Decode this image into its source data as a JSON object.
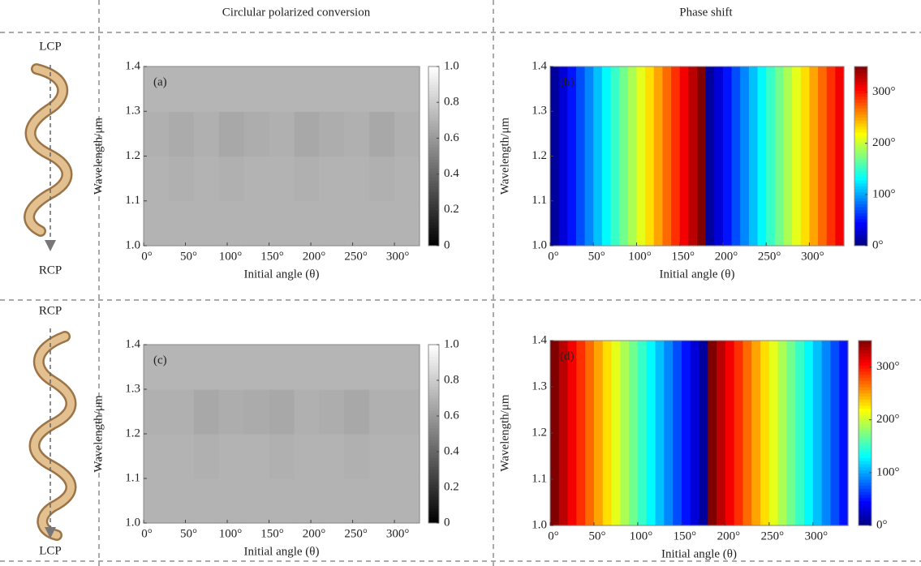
{
  "header": {
    "left": "Circlular polarized conversion",
    "right": "Phase shift"
  },
  "rows": [
    {
      "top": "LCP",
      "bottom": "RCP"
    },
    {
      "top": "RCP",
      "bottom": "LCP"
    }
  ],
  "chart_data": [
    {
      "type": "heatmap",
      "label": "(a)",
      "xlabel": "Initial angle (θ)",
      "ylabel": "Wavelength/μm",
      "colormap": "gray",
      "xbins": [
        0,
        30,
        60,
        90,
        120,
        150,
        180,
        210,
        240,
        270,
        300,
        330
      ],
      "ybins": [
        1,
        1.1,
        1.2,
        1.3,
        1.4
      ],
      "z": [
        [
          0.7,
          0.7,
          0.7,
          0.7,
          0.7,
          0.7,
          0.7,
          0.7,
          0.7,
          0.7,
          0.7
        ],
        [
          0.7,
          0.69,
          0.7,
          0.69,
          0.7,
          0.7,
          0.69,
          0.7,
          0.7,
          0.69,
          0.7
        ],
        [
          0.69,
          0.67,
          0.69,
          0.66,
          0.68,
          0.69,
          0.66,
          0.68,
          0.69,
          0.66,
          0.69
        ],
        [
          0.71,
          0.71,
          0.71,
          0.71,
          0.71,
          0.71,
          0.71,
          0.71,
          0.71,
          0.71,
          0.71
        ]
      ],
      "xlim": [
        0,
        330
      ],
      "ylim": [
        1,
        1.4
      ],
      "xticks": [
        {
          "value": 0,
          "label": "0°"
        },
        {
          "value": 50,
          "label": "50°"
        },
        {
          "value": 100,
          "label": "100°"
        },
        {
          "value": 150,
          "label": "150°"
        },
        {
          "value": 200,
          "label": "200°"
        },
        {
          "value": 250,
          "label": "250°"
        },
        {
          "value": 300,
          "label": "300°"
        }
      ],
      "yticks": [
        {
          "value": 1,
          "label": "1.0"
        },
        1.1,
        1.2,
        1.3,
        1.4
      ],
      "clim": [
        0,
        1
      ],
      "cticks": [
        0,
        0.2,
        0.4,
        0.6,
        0.8,
        {
          "value": 1,
          "label": "1.0"
        }
      ]
    },
    {
      "type": "heatmap",
      "label": "(b)",
      "xlabel": "Initial angle (θ)",
      "ylabel": "Wavelength/μm",
      "colormap": "jet",
      "xbins": [
        0,
        10,
        20,
        30,
        40,
        50,
        60,
        70,
        80,
        90,
        100,
        110,
        120,
        130,
        140,
        150,
        160,
        170,
        180,
        190,
        200,
        210,
        220,
        230,
        240,
        250,
        260,
        270,
        280,
        290,
        300,
        310,
        320,
        330,
        340
      ],
      "ybins": [
        1,
        1.4
      ],
      "z": [
        [
          10,
          30,
          50,
          70,
          90,
          110,
          130,
          150,
          170,
          190,
          210,
          230,
          250,
          270,
          290,
          310,
          330,
          350,
          10,
          30,
          50,
          70,
          90,
          110,
          130,
          150,
          170,
          190,
          210,
          230,
          250,
          270,
          290,
          310
        ]
      ],
      "xlim": [
        0,
        340
      ],
      "ylim": [
        1,
        1.4
      ],
      "xticks": [
        {
          "value": 0,
          "label": "0°"
        },
        {
          "value": 50,
          "label": "50°"
        },
        {
          "value": 100,
          "label": "100°"
        },
        {
          "value": 150,
          "label": "150°"
        },
        {
          "value": 200,
          "label": "200°"
        },
        {
          "value": 250,
          "label": "250°"
        },
        {
          "value": 300,
          "label": "300°"
        }
      ],
      "yticks": [
        {
          "value": 1,
          "label": "1.0"
        },
        1.1,
        1.2,
        1.3,
        1.4
      ],
      "clim": [
        0,
        350
      ],
      "cticks": [
        {
          "value": 0,
          "label": "0°"
        },
        {
          "value": 100,
          "label": "100°"
        },
        {
          "value": 200,
          "label": "200°"
        },
        {
          "value": 300,
          "label": "300°"
        }
      ]
    },
    {
      "type": "heatmap",
      "label": "(c)",
      "xlabel": "Initial angle (θ)",
      "ylabel": "Wavelength/μm",
      "colormap": "gray",
      "xbins": [
        0,
        30,
        60,
        90,
        120,
        150,
        180,
        210,
        240,
        270,
        300,
        330
      ],
      "ybins": [
        1,
        1.1,
        1.2,
        1.3,
        1.4
      ],
      "z": [
        [
          0.7,
          0.7,
          0.7,
          0.7,
          0.7,
          0.7,
          0.7,
          0.7,
          0.7,
          0.7,
          0.7
        ],
        [
          0.7,
          0.7,
          0.69,
          0.7,
          0.7,
          0.69,
          0.7,
          0.7,
          0.69,
          0.7,
          0.7
        ],
        [
          0.69,
          0.69,
          0.66,
          0.68,
          0.67,
          0.66,
          0.69,
          0.68,
          0.66,
          0.69,
          0.69
        ],
        [
          0.71,
          0.71,
          0.71,
          0.71,
          0.71,
          0.71,
          0.71,
          0.71,
          0.71,
          0.71,
          0.71
        ]
      ],
      "xlim": [
        0,
        330
      ],
      "ylim": [
        1,
        1.4
      ],
      "xticks": [
        {
          "value": 0,
          "label": "0°"
        },
        {
          "value": 50,
          "label": "50°"
        },
        {
          "value": 100,
          "label": "100°"
        },
        {
          "value": 150,
          "label": "150°"
        },
        {
          "value": 200,
          "label": "200°"
        },
        {
          "value": 250,
          "label": "250°"
        },
        {
          "value": 300,
          "label": "300°"
        }
      ],
      "yticks": [
        {
          "value": 1,
          "label": "1.0"
        },
        1.1,
        1.2,
        1.3,
        1.4
      ],
      "clim": [
        0,
        1
      ],
      "cticks": [
        0,
        0.2,
        0.4,
        0.6,
        0.8,
        {
          "value": 1,
          "label": "1.0"
        }
      ]
    },
    {
      "type": "heatmap",
      "label": "(d)",
      "xlabel": "Initial angle (θ)",
      "ylabel": "Wavelength/μm",
      "colormap": "jet",
      "xbins": [
        0,
        10,
        20,
        30,
        40,
        50,
        60,
        70,
        80,
        90,
        100,
        110,
        120,
        130,
        140,
        150,
        160,
        170,
        180,
        190,
        200,
        210,
        220,
        230,
        240,
        250,
        260,
        270,
        280,
        290,
        300,
        310,
        320,
        330,
        340
      ],
      "ybins": [
        1,
        1.4
      ],
      "z": [
        [
          350,
          330,
          310,
          290,
          270,
          250,
          230,
          210,
          190,
          170,
          150,
          130,
          110,
          90,
          70,
          50,
          30,
          10,
          350,
          330,
          310,
          290,
          270,
          250,
          230,
          210,
          190,
          170,
          150,
          130,
          110,
          90,
          70,
          50
        ]
      ],
      "xlim": [
        0,
        340
      ],
      "ylim": [
        1,
        1.4
      ],
      "xticks": [
        {
          "value": 0,
          "label": "0°"
        },
        {
          "value": 50,
          "label": "50°"
        },
        {
          "value": 100,
          "label": "100°"
        },
        {
          "value": 150,
          "label": "150°"
        },
        {
          "value": 200,
          "label": "200°"
        },
        {
          "value": 250,
          "label": "250°"
        },
        {
          "value": 300,
          "label": "300°"
        }
      ],
      "yticks": [
        {
          "value": 1,
          "label": "1.0"
        },
        1.1,
        1.2,
        1.3,
        1.4
      ],
      "clim": [
        0,
        350
      ],
      "cticks": [
        {
          "value": 0,
          "label": "0°"
        },
        {
          "value": 100,
          "label": "100°"
        },
        {
          "value": 200,
          "label": "200°"
        },
        {
          "value": 300,
          "label": "300°"
        }
      ]
    }
  ]
}
